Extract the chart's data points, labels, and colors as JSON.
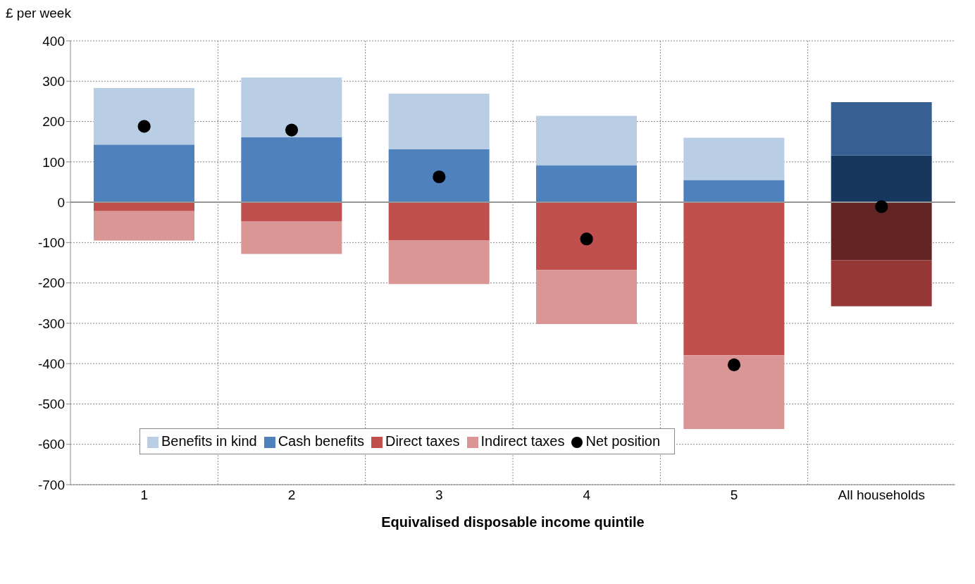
{
  "chart_data": {
    "type": "bar",
    "stacked": true,
    "ylabel": "£ per week",
    "xlabel": "Equivalised disposable income quintile",
    "categories": [
      "1",
      "2",
      "3",
      "4",
      "5",
      "All households"
    ],
    "series": [
      {
        "name": "Direct taxes",
        "color": "#c0504d",
        "colors": [
          "#c0504d",
          "#c0504d",
          "#c0504d",
          "#c0504d",
          "#c0504d",
          "#632523"
        ],
        "values": [
          -22,
          -47,
          -95,
          -168,
          -379,
          -144
        ]
      },
      {
        "name": "Indirect taxes",
        "color": "#d99694",
        "colors": [
          "#d99694",
          "#d99694",
          "#d99694",
          "#d99694",
          "#d99694",
          "#953735"
        ],
        "values": [
          -73,
          -81,
          -108,
          -134,
          -183,
          -114
        ]
      },
      {
        "name": "Cash benefits",
        "color": "#4f81bd",
        "colors": [
          "#4f81bd",
          "#4f81bd",
          "#4f81bd",
          "#4f81bd",
          "#4f81bd",
          "#17375e"
        ],
        "values": [
          143,
          161,
          131,
          92,
          55,
          116
        ]
      },
      {
        "name": "Benefits in kind",
        "color": "#b9cde5",
        "colors": [
          "#b9cde5",
          "#b9cde5",
          "#b9cde5",
          "#b9cde5",
          "#b9cde5",
          "#366092"
        ],
        "values": [
          140,
          148,
          138,
          122,
          105,
          132
        ]
      },
      {
        "name": "Net position",
        "type": "scatter",
        "color": "#000000",
        "x": [
          "1",
          "2",
          "3",
          "4",
          "5",
          "All households"
        ],
        "values": [
          188,
          179,
          63,
          -91,
          -403,
          -11
        ]
      }
    ],
    "ylim": [
      -700,
      400
    ],
    "yticks": [
      -700,
      -600,
      -500,
      -400,
      -300,
      -200,
      -100,
      0,
      100,
      200,
      300,
      400
    ],
    "ref_lines": [
      {
        "axis": "y",
        "value": 0,
        "color": "#969696"
      }
    ],
    "grid": true,
    "legend": "bottom",
    "marker": "circle"
  }
}
